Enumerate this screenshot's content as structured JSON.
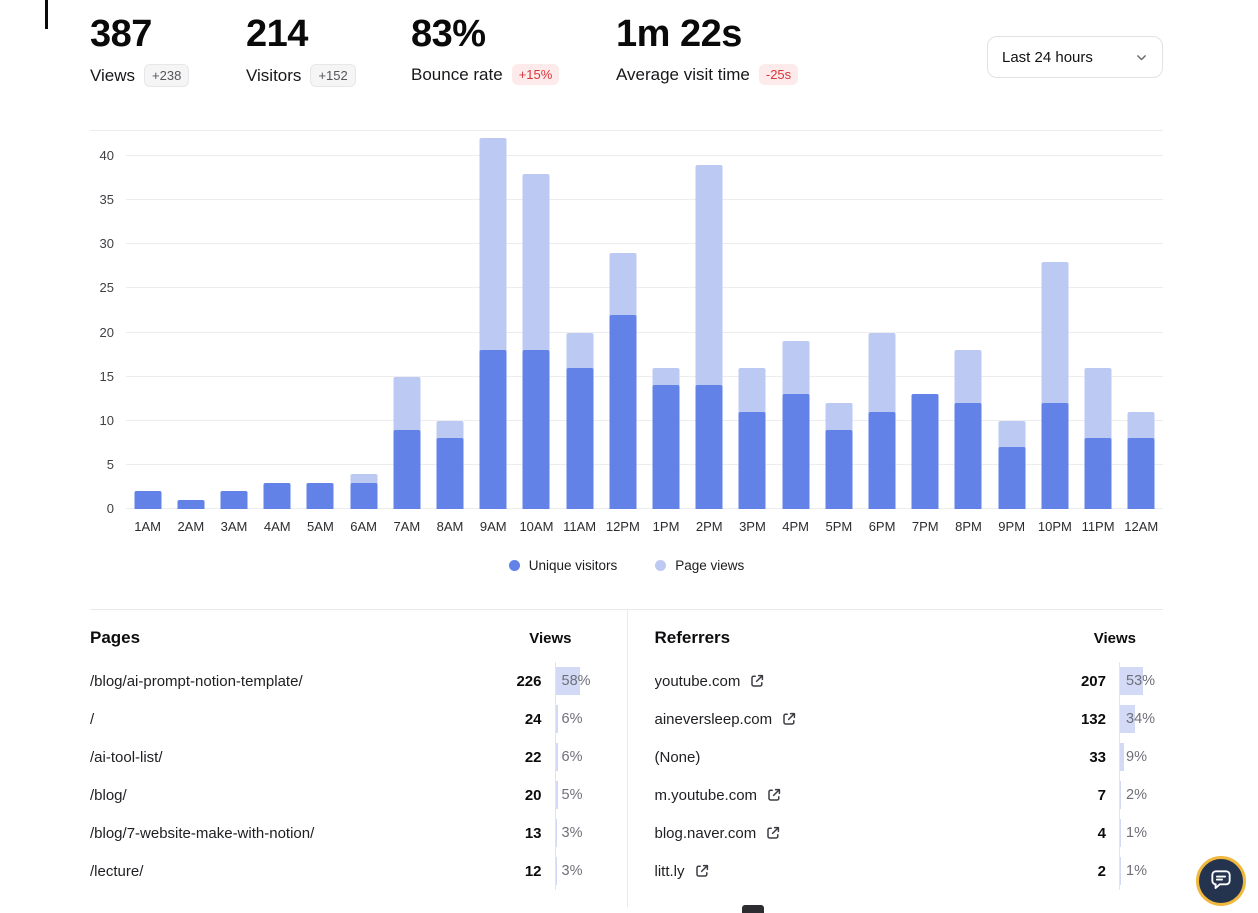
{
  "stats": [
    {
      "value": "387",
      "label": "Views",
      "badge": "+238",
      "badge_type": "neutral"
    },
    {
      "value": "214",
      "label": "Visitors",
      "badge": "+152",
      "badge_type": "neutral"
    },
    {
      "value": "83%",
      "label": "Bounce rate",
      "badge": "+15%",
      "badge_type": "negative"
    },
    {
      "value": "1m 22s",
      "label": "Average visit time",
      "badge": "-25s",
      "badge_type": "negative"
    }
  ],
  "time_range": {
    "selected": "Last 24 hours",
    "icon": "chevron-down-icon"
  },
  "chart_data": {
    "type": "bar",
    "categories": [
      "1AM",
      "2AM",
      "3AM",
      "4AM",
      "5AM",
      "6AM",
      "7AM",
      "8AM",
      "9AM",
      "10AM",
      "11AM",
      "12PM",
      "1PM",
      "2PM",
      "3PM",
      "4PM",
      "5PM",
      "6PM",
      "7PM",
      "8PM",
      "9PM",
      "10PM",
      "11PM",
      "12AM"
    ],
    "series": [
      {
        "name": "Unique visitors",
        "color": "#6282e8",
        "values": [
          2,
          1,
          2,
          3,
          3,
          3,
          9,
          8,
          18,
          18,
          16,
          22,
          14,
          14,
          11,
          13,
          9,
          11,
          13,
          12,
          7,
          12,
          8,
          8
        ]
      },
      {
        "name": "Page views",
        "color": "#bcc9f3",
        "values": [
          2,
          1,
          2,
          3,
          3,
          4,
          15,
          10,
          42,
          38,
          20,
          29,
          16,
          39,
          16,
          19,
          12,
          20,
          13,
          18,
          10,
          28,
          16,
          11
        ]
      }
    ],
    "title": "",
    "xlabel": "",
    "ylabel": "",
    "ylim": [
      0,
      40
    ],
    "yticks": [
      0,
      5,
      10,
      15,
      20,
      25,
      30,
      35,
      40
    ],
    "grid": true,
    "legend_position": "bottom"
  },
  "pages_table": {
    "title": "Pages",
    "views_header": "Views",
    "rows": [
      {
        "name": "/blog/ai-prompt-notion-template/",
        "views": "226",
        "pct": 58,
        "external": false
      },
      {
        "name": "/",
        "views": "24",
        "pct": 6,
        "external": false
      },
      {
        "name": "/ai-tool-list/",
        "views": "22",
        "pct": 6,
        "external": false
      },
      {
        "name": "/blog/",
        "views": "20",
        "pct": 5,
        "external": false
      },
      {
        "name": "/blog/7-website-make-with-notion/",
        "views": "13",
        "pct": 3,
        "external": false
      },
      {
        "name": "/lecture/",
        "views": "12",
        "pct": 3,
        "external": false
      }
    ]
  },
  "referrers_table": {
    "title": "Referrers",
    "views_header": "Views",
    "rows": [
      {
        "name": "youtube.com",
        "views": "207",
        "pct": 53,
        "external": true
      },
      {
        "name": "aineversleep.com",
        "views": "132",
        "pct": 34,
        "external": true
      },
      {
        "name": "(None)",
        "views": "33",
        "pct": 9,
        "external": false
      },
      {
        "name": "m.youtube.com",
        "views": "7",
        "pct": 2,
        "external": true
      },
      {
        "name": "blog.naver.com",
        "views": "4",
        "pct": 1,
        "external": true
      },
      {
        "name": "litt.ly",
        "views": "2",
        "pct": 1,
        "external": true
      }
    ]
  },
  "icons": {
    "external_link": "external-link-icon",
    "chevron_down": "chevron-down-icon",
    "chat": "chat-bubble-icon"
  },
  "colors": {
    "unique_visitors": "#6282e8",
    "page_views": "#bcc9f3",
    "percent_fill": "#d3daf6",
    "badge_negative_bg": "#fcebea",
    "badge_negative_text": "#d8373c",
    "chat_ring": "#f1b83e",
    "chat_bg": "#24344e"
  }
}
